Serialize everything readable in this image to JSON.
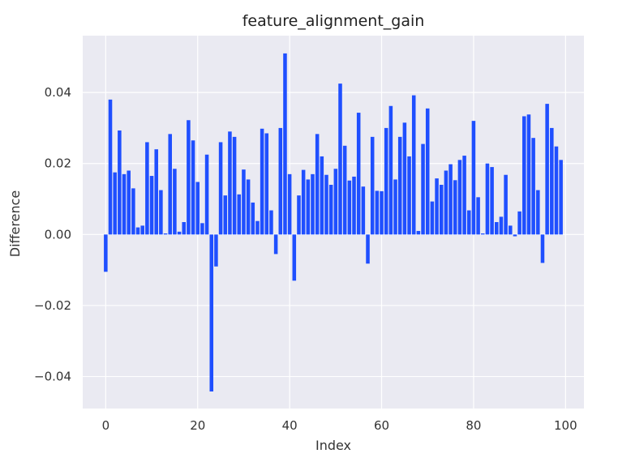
{
  "chart_data": {
    "type": "bar",
    "title": "feature_alignment_gain",
    "xlabel": "Index",
    "ylabel": "Difference",
    "xlim": [
      -5,
      104
    ],
    "ylim": [
      -0.049,
      0.056
    ],
    "x_ticks": [
      0,
      20,
      40,
      60,
      80,
      100
    ],
    "x_tick_labels": [
      "0",
      "20",
      "40",
      "60",
      "80",
      "100"
    ],
    "y_ticks": [
      -0.04,
      -0.02,
      0.0,
      0.02,
      0.04
    ],
    "y_tick_labels": [
      "−0.04",
      "−0.02",
      "0.00",
      "0.02",
      "0.04"
    ],
    "grid": true,
    "colors": {
      "bar": "#1f4fff",
      "plot_background": "#eaeaf2",
      "grid": "#ffffff"
    },
    "x": [
      0,
      1,
      2,
      3,
      4,
      5,
      6,
      7,
      8,
      9,
      10,
      11,
      12,
      13,
      14,
      15,
      16,
      17,
      18,
      19,
      20,
      21,
      22,
      23,
      24,
      25,
      26,
      27,
      28,
      29,
      30,
      31,
      32,
      33,
      34,
      35,
      36,
      37,
      38,
      39,
      40,
      41,
      42,
      43,
      44,
      45,
      46,
      47,
      48,
      49,
      50,
      51,
      52,
      53,
      54,
      55,
      56,
      57,
      58,
      59,
      60,
      61,
      62,
      63,
      64,
      65,
      66,
      67,
      68,
      69,
      70,
      71,
      72,
      73,
      74,
      75,
      76,
      77,
      78,
      79,
      80,
      81,
      82,
      83,
      84,
      85,
      86,
      87,
      88,
      89,
      90,
      91,
      92,
      93,
      94,
      95,
      96,
      97,
      98,
      99
    ],
    "values": [
      -0.0105,
      0.038,
      0.0175,
      0.0293,
      0.017,
      0.018,
      0.013,
      0.002,
      0.0025,
      0.026,
      0.0165,
      0.024,
      0.0125,
      0.0003,
      0.0283,
      0.0185,
      0.0008,
      0.0035,
      0.0322,
      0.0265,
      0.0148,
      0.0032,
      0.0225,
      -0.0442,
      -0.009,
      0.026,
      0.011,
      0.029,
      0.0275,
      0.0113,
      0.0183,
      0.0155,
      0.009,
      0.0038,
      0.0298,
      0.0285,
      0.0068,
      -0.0055,
      0.03,
      0.051,
      0.017,
      -0.013,
      0.011,
      0.0182,
      0.0155,
      0.017,
      0.0283,
      0.022,
      0.0168,
      0.014,
      0.0185,
      0.0425,
      0.025,
      0.0152,
      0.0163,
      0.0343,
      0.0135,
      -0.0082,
      0.0275,
      0.0123,
      0.0122,
      0.03,
      0.0362,
      0.0155,
      0.0275,
      0.0315,
      0.022,
      0.0392,
      0.001,
      0.0255,
      0.0355,
      0.0093,
      0.0158,
      0.014,
      0.018,
      0.0198,
      0.0153,
      0.021,
      0.0222,
      0.0068,
      0.032,
      0.0105,
      0.0003,
      0.02,
      0.019,
      0.0035,
      0.005,
      0.0168,
      0.0025,
      -0.0005,
      0.0065,
      0.0333,
      0.0338,
      0.0272,
      0.0125,
      -0.008,
      0.0368,
      0.03,
      0.0248,
      0.021
    ]
  }
}
